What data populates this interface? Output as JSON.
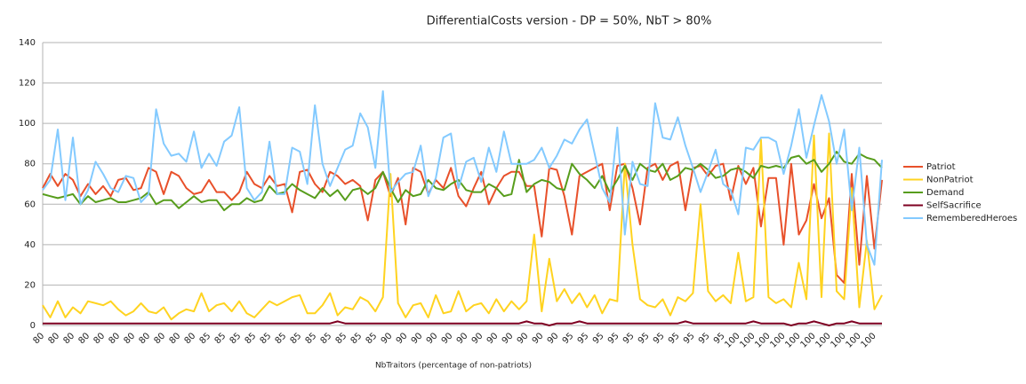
{
  "chart_data": {
    "type": "line",
    "title": "DifferentialCosts version - DP = 50%, NbT > 80%",
    "x_label": "NbTraitors (percentage of non-patriots)",
    "categories": [
      "80",
      null,
      "80",
      null,
      "80",
      null,
      "80",
      null,
      "80",
      null,
      "80",
      null,
      "80",
      null,
      "80",
      null,
      "80",
      null,
      "80",
      null,
      "80",
      null,
      "85",
      null,
      "85",
      null,
      "85",
      null,
      "85",
      null,
      "85",
      null,
      "85",
      null,
      "85",
      null,
      "85",
      null,
      "85",
      null,
      "85",
      null,
      "85",
      null,
      "85",
      null,
      "90",
      null,
      "90",
      null,
      "90",
      null,
      "90",
      null,
      "90",
      null,
      "90",
      null,
      "90",
      null,
      "90",
      null,
      "90",
      null,
      "90",
      null,
      "90",
      null,
      "90",
      null,
      "95",
      null,
      "95",
      null,
      "95",
      null,
      "95",
      null,
      "95",
      null,
      "95",
      null,
      "95",
      null,
      "95",
      null,
      "95",
      null,
      "95",
      null,
      "95",
      null,
      "100",
      null,
      "100",
      null,
      "100",
      null,
      "100",
      null,
      "100",
      null,
      "100",
      null,
      "100",
      null,
      "100",
      null,
      "100",
      null,
      "100",
      null
    ],
    "series": [
      {
        "name": "Patriot",
        "color": "#e8502a",
        "values": [
          68,
          75,
          69,
          75,
          72,
          64,
          70,
          65,
          69,
          64,
          72,
          73,
          67,
          68,
          78,
          76,
          65,
          76,
          74,
          68,
          65,
          66,
          72,
          66,
          66,
          62,
          66,
          76,
          70,
          68,
          74,
          69,
          70,
          56,
          76,
          77,
          70,
          66,
          76,
          74,
          70,
          72,
          69,
          52,
          72,
          76,
          64,
          73,
          50,
          78,
          76,
          65,
          72,
          68,
          78,
          64,
          59,
          68,
          76,
          60,
          68,
          74,
          76,
          76,
          69,
          69,
          44,
          78,
          77,
          64,
          45,
          74,
          76,
          78,
          80,
          57,
          79,
          80,
          68,
          50,
          78,
          80,
          72,
          79,
          81,
          57,
          78,
          79,
          74,
          79,
          80,
          62,
          79,
          70,
          78,
          49,
          73,
          73,
          40,
          80,
          45,
          52,
          70,
          53,
          63,
          25,
          21,
          75,
          30,
          74,
          38,
          72
        ]
      },
      {
        "name": "NonPatriot",
        "color": "#ffd320",
        "values": [
          10,
          4,
          12,
          4,
          9,
          6,
          12,
          11,
          10,
          12,
          8,
          5,
          7,
          11,
          7,
          6,
          9,
          3,
          6,
          8,
          7,
          16,
          7,
          10,
          11,
          7,
          12,
          6,
          4,
          8,
          12,
          10,
          12,
          14,
          15,
          6,
          6,
          10,
          16,
          5,
          9,
          8,
          14,
          12,
          7,
          14,
          75,
          11,
          4,
          10,
          11,
          4,
          15,
          6,
          7,
          17,
          7,
          10,
          11,
          6,
          13,
          7,
          12,
          8,
          12,
          45,
          7,
          33,
          12,
          18,
          11,
          16,
          9,
          15,
          6,
          13,
          12,
          80,
          40,
          13,
          10,
          9,
          13,
          5,
          14,
          12,
          16,
          60,
          17,
          12,
          15,
          11,
          36,
          12,
          14,
          92,
          14,
          11,
          13,
          9,
          31,
          13,
          94,
          14,
          95,
          17,
          13,
          68,
          9,
          42,
          8,
          15
        ]
      },
      {
        "name": "Demand",
        "color": "#579d1c",
        "values": [
          65,
          64,
          63,
          64,
          65,
          60,
          64,
          61,
          62,
          63,
          61,
          61,
          62,
          63,
          66,
          60,
          62,
          62,
          58,
          61,
          64,
          61,
          62,
          62,
          57,
          60,
          60,
          63,
          61,
          62,
          69,
          65,
          66,
          70,
          67,
          65,
          63,
          68,
          64,
          67,
          62,
          67,
          68,
          65,
          68,
          76,
          68,
          61,
          67,
          64,
          65,
          72,
          68,
          67,
          70,
          72,
          67,
          66,
          66,
          70,
          68,
          64,
          65,
          82,
          66,
          70,
          72,
          71,
          68,
          67,
          80,
          75,
          72,
          68,
          74,
          66,
          72,
          79,
          72,
          80,
          77,
          76,
          80,
          72,
          74,
          78,
          77,
          80,
          77,
          73,
          74,
          77,
          78,
          76,
          73,
          79,
          78,
          79,
          78,
          83,
          84,
          80,
          82,
          76,
          80,
          86,
          81,
          80,
          85,
          83,
          82,
          78
        ]
      },
      {
        "name": "SelfSacrifice",
        "color": "#7e0021",
        "values": [
          1,
          1,
          1,
          1,
          1,
          1,
          1,
          1,
          1,
          1,
          1,
          1,
          1,
          1,
          1,
          1,
          1,
          1,
          1,
          1,
          1,
          1,
          1,
          1,
          1,
          1,
          1,
          1,
          1,
          1,
          1,
          1,
          1,
          1,
          1,
          1,
          1,
          1,
          1,
          2,
          1,
          1,
          1,
          1,
          1,
          1,
          1,
          1,
          1,
          1,
          1,
          1,
          1,
          1,
          1,
          1,
          1,
          1,
          1,
          1,
          1,
          1,
          1,
          1,
          2,
          1,
          1,
          0,
          1,
          1,
          1,
          2,
          1,
          1,
          1,
          1,
          1,
          1,
          1,
          1,
          1,
          1,
          1,
          1,
          1,
          2,
          1,
          1,
          1,
          1,
          1,
          1,
          1,
          1,
          2,
          1,
          1,
          1,
          1,
          0,
          1,
          1,
          2,
          1,
          0,
          1,
          1,
          2,
          1,
          1,
          1,
          1
        ]
      },
      {
        "name": "RememberedHeroes",
        "color": "#83caff",
        "values": [
          67,
          72,
          97,
          62,
          93,
          60,
          67,
          81,
          75,
          68,
          66,
          74,
          73,
          61,
          65,
          107,
          90,
          84,
          85,
          81,
          96,
          78,
          85,
          79,
          91,
          94,
          108,
          68,
          62,
          66,
          91,
          65,
          65,
          88,
          86,
          70,
          109,
          80,
          69,
          78,
          87,
          89,
          105,
          98,
          78,
          116,
          66,
          71,
          75,
          76,
          89,
          64,
          73,
          93,
          95,
          68,
          81,
          83,
          71,
          88,
          76,
          96,
          80,
          80,
          80,
          82,
          88,
          78,
          84,
          92,
          90,
          97,
          102,
          85,
          68,
          61,
          98,
          45,
          81,
          70,
          69,
          110,
          93,
          92,
          103,
          89,
          78,
          66,
          76,
          87,
          70,
          67,
          55,
          88,
          87,
          93,
          93,
          91,
          75,
          89,
          107,
          83,
          99,
          114,
          101,
          80,
          97,
          57,
          88,
          40,
          30,
          82
        ]
      }
    ],
    "ylim": [
      0,
      140
    ],
    "yticks": [
      0,
      20,
      40,
      60,
      80,
      100,
      120,
      140
    ],
    "grid": true,
    "legend": "right"
  }
}
